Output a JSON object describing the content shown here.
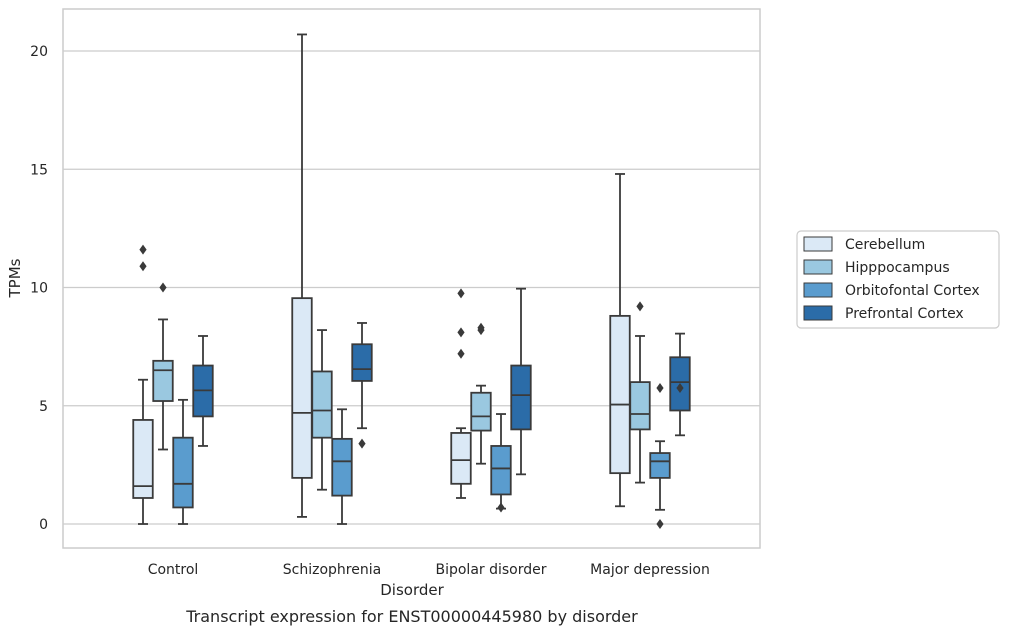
{
  "chart_data": {
    "type": "boxplot",
    "caption": "Transcript expression for ENST00000445980 by disorder",
    "xlabel": "Disorder",
    "ylabel": "TPMs",
    "ylim": [
      -1,
      21.8
    ],
    "yticks": [
      0,
      5,
      10,
      15,
      20
    ],
    "grid": "horizontal",
    "legend_position": "right, outside plot",
    "categories": [
      "Control",
      "Schizophrenia",
      "Bipolar disorder",
      "Major depression"
    ],
    "series": [
      {
        "name": "Cerebellum",
        "color": "#dbe9f6",
        "boxes": [
          {
            "whislo": 0.0,
            "q1": 1.1,
            "median": 1.6,
            "q3": 4.4,
            "whishi": 6.1,
            "fliers": [
              10.9,
              11.6
            ]
          },
          {
            "whislo": 0.3,
            "q1": 1.95,
            "median": 4.7,
            "q3": 9.55,
            "whishi": 20.7,
            "fliers": []
          },
          {
            "whislo": 1.1,
            "q1": 1.7,
            "median": 2.7,
            "q3": 3.85,
            "whishi": 4.05,
            "fliers": [
              7.2,
              8.1,
              9.75
            ]
          },
          {
            "whislo": 0.75,
            "q1": 2.15,
            "median": 5.05,
            "q3": 8.8,
            "whishi": 14.8,
            "fliers": []
          }
        ]
      },
      {
        "name": "Hipppocampus",
        "color": "#9ac8e0",
        "boxes": [
          {
            "whislo": 3.15,
            "q1": 5.2,
            "median": 6.5,
            "q3": 6.9,
            "whishi": 8.65,
            "fliers": [
              10.0
            ]
          },
          {
            "whislo": 1.45,
            "q1": 3.65,
            "median": 4.8,
            "q3": 6.45,
            "whishi": 8.2,
            "fliers": []
          },
          {
            "whislo": 2.55,
            "q1": 3.95,
            "median": 4.55,
            "q3": 5.55,
            "whishi": 5.85,
            "fliers": [
              8.2,
              8.3
            ]
          },
          {
            "whislo": 1.75,
            "q1": 4.0,
            "median": 4.65,
            "q3": 6.0,
            "whishi": 7.95,
            "fliers": [
              9.2
            ]
          }
        ]
      },
      {
        "name": "Orbitofontal Cortex",
        "color": "#5a9cce",
        "boxes": [
          {
            "whislo": 0.0,
            "q1": 0.7,
            "median": 1.7,
            "q3": 3.65,
            "whishi": 5.25,
            "fliers": []
          },
          {
            "whislo": 0.0,
            "q1": 1.2,
            "median": 2.65,
            "q3": 3.6,
            "whishi": 4.85,
            "fliers": []
          },
          {
            "whislo": 0.65,
            "q1": 1.25,
            "median": 2.35,
            "q3": 3.3,
            "whishi": 4.65,
            "fliers": [
              0.7
            ]
          },
          {
            "whislo": 0.6,
            "q1": 1.95,
            "median": 2.65,
            "q3": 3.0,
            "whishi": 3.5,
            "fliers": [
              0.0,
              5.75
            ]
          }
        ]
      },
      {
        "name": "Prefrontal Cortex",
        "color": "#2b6ca8",
        "boxes": [
          {
            "whislo": 3.3,
            "q1": 4.55,
            "median": 5.65,
            "q3": 6.7,
            "whishi": 7.95,
            "fliers": []
          },
          {
            "whislo": 4.05,
            "q1": 6.05,
            "median": 6.55,
            "q3": 7.6,
            "whishi": 8.5,
            "fliers": [
              3.4
            ]
          },
          {
            "whislo": 2.1,
            "q1": 4.0,
            "median": 5.45,
            "q3": 6.7,
            "whishi": 9.95,
            "fliers": []
          },
          {
            "whislo": 3.75,
            "q1": 4.8,
            "median": 6.0,
            "q3": 7.05,
            "whishi": 8.05,
            "fliers": [
              5.75
            ]
          }
        ]
      }
    ]
  },
  "style": {
    "edge_color": "#3a3a3a",
    "grid_color": "#cccccc",
    "frame_color": "#cccccc"
  }
}
